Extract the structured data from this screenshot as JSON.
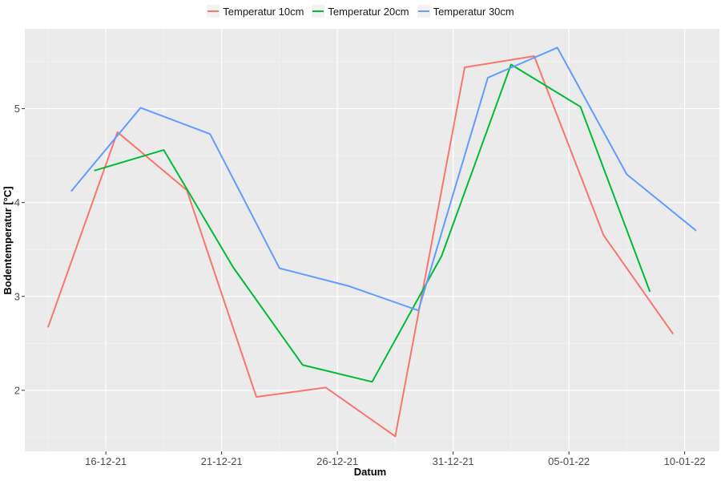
{
  "chart_data": {
    "type": "line",
    "xlabel": "Datum",
    "ylabel": "Bodentemperatur [°C]",
    "x_ticks": [
      {
        "date": "2021-12-16",
        "label": "16-12-21"
      },
      {
        "date": "2021-12-21",
        "label": "21-12-21"
      },
      {
        "date": "2021-12-26",
        "label": "26-12-21"
      },
      {
        "date": "2021-12-31",
        "label": "31-12-21"
      },
      {
        "date": "2022-01-05",
        "label": "05-01-22"
      },
      {
        "date": "2022-01-10",
        "label": "10-01-22"
      }
    ],
    "y_ticks": [
      2,
      3,
      4,
      5
    ],
    "xlim": [
      "2021-12-12T12:00",
      "2022-01-11T12:00"
    ],
    "ylim": [
      1.35,
      5.85
    ],
    "grid": true,
    "legend_position": "top",
    "series": [
      {
        "name": "Temperatur 10cm",
        "color": "#F8766D",
        "points": [
          {
            "x": "2021-12-13T12:00",
            "y": 2.67
          },
          {
            "x": "2021-12-16T12:00",
            "y": 4.75
          },
          {
            "x": "2021-12-19T12:00",
            "y": 4.13
          },
          {
            "x": "2021-12-22T12:00",
            "y": 1.93
          },
          {
            "x": "2021-12-25T12:00",
            "y": 2.03
          },
          {
            "x": "2021-12-28T12:00",
            "y": 1.51
          },
          {
            "x": "2021-12-31T12:00",
            "y": 5.44
          },
          {
            "x": "2022-01-03T12:00",
            "y": 5.56
          },
          {
            "x": "2022-01-06T12:00",
            "y": 3.65
          },
          {
            "x": "2022-01-09T12:00",
            "y": 2.6
          }
        ]
      },
      {
        "name": "Temperatur 20cm",
        "color": "#00BA38",
        "points": [
          {
            "x": "2021-12-15T12:00",
            "y": 4.34
          },
          {
            "x": "2021-12-18T12:00",
            "y": 4.56
          },
          {
            "x": "2021-12-21T12:00",
            "y": 3.31
          },
          {
            "x": "2021-12-24T12:00",
            "y": 2.27
          },
          {
            "x": "2021-12-27T12:00",
            "y": 2.09
          },
          {
            "x": "2021-12-30T12:00",
            "y": 3.43
          },
          {
            "x": "2022-01-02T12:00",
            "y": 5.47
          },
          {
            "x": "2022-01-05T12:00",
            "y": 5.02
          },
          {
            "x": "2022-01-08T12:00",
            "y": 3.05
          }
        ]
      },
      {
        "name": "Temperatur 30cm",
        "color": "#619CFF",
        "points": [
          {
            "x": "2021-12-14T12:00",
            "y": 4.12
          },
          {
            "x": "2021-12-17T12:00",
            "y": 5.01
          },
          {
            "x": "2021-12-20T12:00",
            "y": 4.73
          },
          {
            "x": "2021-12-23T12:00",
            "y": 3.3
          },
          {
            "x": "2021-12-26T12:00",
            "y": 3.11
          },
          {
            "x": "2021-12-29T12:00",
            "y": 2.85
          },
          {
            "x": "2022-01-01T12:00",
            "y": 5.33
          },
          {
            "x": "2022-01-04T12:00",
            "y": 5.65
          },
          {
            "x": "2022-01-07T12:00",
            "y": 4.3
          },
          {
            "x": "2022-01-10T12:00",
            "y": 3.7
          }
        ]
      }
    ]
  }
}
